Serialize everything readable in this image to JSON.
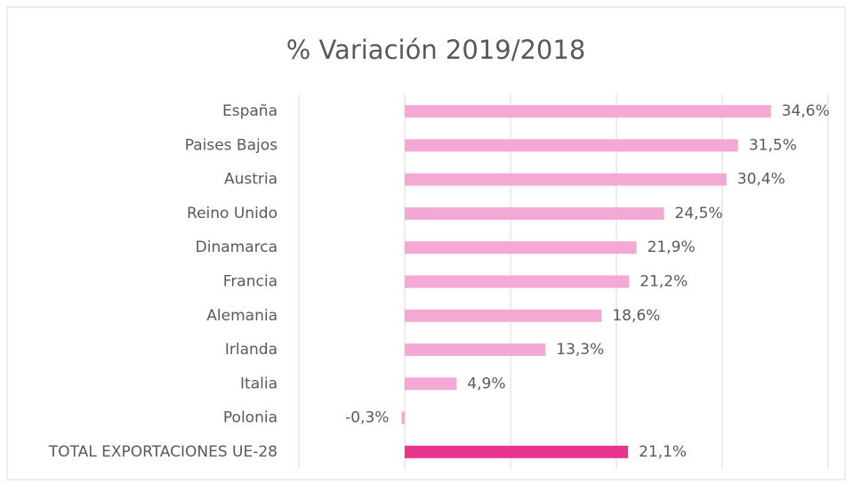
{
  "chart_data": {
    "type": "hbar",
    "title": "% Variación 2019/2018",
    "categories": [
      "España",
      "Paises Bajos",
      "Austria",
      "Reino Unido",
      "Dinamarca",
      "Francia",
      "Alemania",
      "Irlanda",
      "Italia",
      "Polonia",
      "TOTAL EXPORTACIONES UE-28"
    ],
    "values": [
      34.6,
      31.5,
      30.4,
      24.5,
      21.9,
      21.2,
      18.6,
      13.3,
      4.9,
      -0.3,
      21.1
    ],
    "value_labels": [
      "34,6%",
      "31,5%",
      "30,4%",
      "24,5%",
      "21,9%",
      "21,2%",
      "18,6%",
      "13,3%",
      "4,9%",
      "-0,3%",
      "21,1%"
    ],
    "colors": [
      "#f4a9d4",
      "#f4a9d4",
      "#f4a9d4",
      "#f4a9d4",
      "#f4a9d4",
      "#f4a9d4",
      "#f4a9d4",
      "#f4a9d4",
      "#f4a9d4",
      "#f4a9d4",
      "#e8348f"
    ],
    "xlim": [
      -10,
      40
    ],
    "xticks": [
      -10,
      0,
      10,
      20,
      30,
      40
    ],
    "grid": true
  }
}
